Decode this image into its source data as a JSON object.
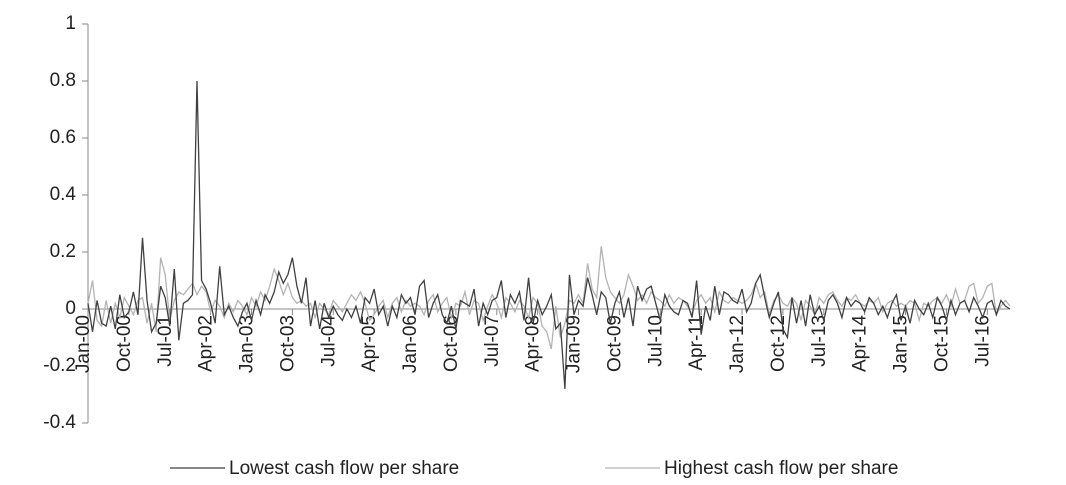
{
  "chart_data": {
    "type": "line",
    "categories": [
      "Jan-00",
      null,
      null,
      null,
      null,
      null,
      null,
      null,
      null,
      "Oct-00",
      null,
      null,
      null,
      null,
      null,
      null,
      null,
      null,
      "Jul-01",
      null,
      null,
      null,
      null,
      null,
      null,
      null,
      null,
      "Apr-02",
      null,
      null,
      null,
      null,
      null,
      null,
      null,
      null,
      "Jan-03",
      null,
      null,
      null,
      null,
      null,
      null,
      null,
      null,
      "Oct-03",
      null,
      null,
      null,
      null,
      null,
      null,
      null,
      null,
      "Jul-04",
      null,
      null,
      null,
      null,
      null,
      null,
      null,
      null,
      "Apr-05",
      null,
      null,
      null,
      null,
      null,
      null,
      null,
      null,
      "Jan-06",
      null,
      null,
      null,
      null,
      null,
      null,
      null,
      null,
      "Oct-06",
      null,
      null,
      null,
      null,
      null,
      null,
      null,
      null,
      "Jul-07",
      null,
      null,
      null,
      null,
      null,
      null,
      null,
      null,
      "Apr-08",
      null,
      null,
      null,
      null,
      null,
      null,
      null,
      null,
      "Jan-09",
      null,
      null,
      null,
      null,
      null,
      null,
      null,
      null,
      "Oct-09",
      null,
      null,
      null,
      null,
      null,
      null,
      null,
      null,
      "Jul-10",
      null,
      null,
      null,
      null,
      null,
      null,
      null,
      null,
      "Apr-11",
      null,
      null,
      null,
      null,
      null,
      null,
      null,
      null,
      "Jan-12",
      null,
      null,
      null,
      null,
      null,
      null,
      null,
      null,
      "Oct-12",
      null,
      null,
      null,
      null,
      null,
      null,
      null,
      null,
      "Jul-13",
      null,
      null,
      null,
      null,
      null,
      null,
      null,
      null,
      "Apr-14",
      null,
      null,
      null,
      null,
      null,
      null,
      null,
      null,
      "Jan-15",
      null,
      null,
      null,
      null,
      null,
      null,
      null,
      null,
      "Oct-15",
      null,
      null,
      null,
      null,
      null,
      null,
      null,
      null,
      "Jul-16",
      null,
      null,
      null,
      null,
      null
    ],
    "series": [
      {
        "name": "Lowest cash flow per share",
        "color": "#404040",
        "values": [
          0.02,
          -0.08,
          0.03,
          -0.05,
          -0.06,
          0.01,
          -0.07,
          0.05,
          -0.03,
          -0.01,
          0.06,
          -0.02,
          0.25,
          0.03,
          -0.08,
          -0.05,
          0.08,
          0.04,
          -0.06,
          0.14,
          -0.11,
          0.02,
          0.03,
          0.05,
          0.8,
          0.1,
          0.07,
          0.02,
          -0.05,
          0.15,
          -0.02,
          0.01,
          -0.03,
          -0.06,
          -0.01,
          0.02,
          -0.04,
          0.03,
          -0.02,
          0.05,
          0.02,
          0.06,
          0.13,
          0.09,
          0.12,
          0.18,
          0.08,
          0.02,
          0.11,
          -0.06,
          0.03,
          -0.07,
          0.02,
          -0.03,
          0.01,
          -0.02,
          -0.04,
          0.0,
          -0.03,
          0.01,
          -0.05,
          0.04,
          0.02,
          0.07,
          -0.02,
          0.01,
          -0.06,
          0.01,
          -0.03,
          0.05,
          0.02,
          0.04,
          -0.02,
          0.08,
          0.1,
          -0.03,
          0.02,
          0.05,
          -0.02,
          -0.05,
          0.01,
          -0.07,
          0.03,
          0.02,
          0.01,
          0.07,
          -0.06,
          0.02,
          -0.02,
          0.03,
          0.04,
          0.1,
          -0.03,
          0.05,
          0.02,
          0.06,
          -0.04,
          0.11,
          -0.05,
          0.03,
          -0.02,
          0.01,
          0.05,
          -0.07,
          -0.05,
          -0.28,
          0.12,
          -0.02,
          0.03,
          0.01,
          0.11,
          0.05,
          -0.02,
          0.06,
          0.04,
          -0.05,
          0.02,
          0.06,
          -0.03,
          0.04,
          -0.06,
          0.08,
          0.03,
          0.07,
          0.08,
          0.02,
          -0.04,
          0.05,
          0.01,
          -0.01,
          -0.02,
          0.03,
          0.02,
          -0.03,
          0.1,
          -0.09,
          0.01,
          -0.04,
          0.08,
          -0.02,
          0.06,
          0.05,
          0.03,
          0.02,
          0.07,
          -0.01,
          0.02,
          0.09,
          0.12,
          0.04,
          -0.03,
          0.02,
          0.06,
          -0.07,
          -0.1,
          0.04,
          -0.05,
          0.03,
          -0.06,
          0.05,
          -0.02,
          0.01,
          -0.04,
          0.03,
          0.05,
          0.02,
          -0.03,
          0.04,
          0.01,
          0.03,
          0.02,
          -0.01,
          0.04,
          0.02,
          -0.02,
          0.01,
          -0.03,
          0.02,
          0.05,
          -0.04,
          0.01,
          -0.05,
          0.03,
          0.0,
          -0.02,
          0.02,
          -0.03,
          0.04,
          0.01,
          -0.04,
          0.03,
          -0.02,
          0.02,
          0.03,
          -0.01,
          0.04,
          0.01,
          -0.03,
          0.02,
          0.03,
          -0.02,
          0.03,
          0.01,
          0.0
        ]
      },
      {
        "name": "Highest cash flow per share",
        "color": "#b3b3b3",
        "values": [
          0.02,
          0.1,
          -0.04,
          -0.06,
          0.03,
          -0.05,
          0.02,
          -0.03,
          0.04,
          0.01,
          -0.02,
          0.03,
          0.04,
          -0.05,
          0.02,
          -0.08,
          0.18,
          0.12,
          -0.04,
          0.03,
          0.06,
          0.05,
          0.07,
          0.09,
          0.05,
          0.08,
          0.06,
          -0.01,
          0.03,
          0.01,
          -0.03,
          0.02,
          -0.01,
          0.03,
          0.01,
          -0.02,
          0.04,
          0.01,
          0.06,
          0.03,
          0.08,
          0.14,
          0.1,
          0.05,
          0.09,
          0.04,
          0.02,
          0.03,
          0.01,
          0.02,
          -0.03,
          0.02,
          0.0,
          -0.02,
          0.03,
          0.01,
          -0.01,
          0.02,
          0.05,
          0.03,
          0.06,
          0.02,
          -0.04,
          -0.02,
          0.01,
          0.03,
          -0.03,
          0.02,
          0.04,
          -0.01,
          0.03,
          0.01,
          0.02,
          0.01,
          -0.02,
          0.03,
          0.05,
          -0.01,
          0.02,
          0.04,
          -0.03,
          0.02,
          0.01,
          0.06,
          -0.02,
          0.03,
          0.02,
          -0.04,
          0.01,
          0.05,
          0.02,
          -0.03,
          0.04,
          0.02,
          -0.01,
          0.03,
          0.01,
          -0.03,
          0.04,
          0.02,
          -0.06,
          -0.08,
          -0.14,
          0.01,
          -0.1,
          -0.05,
          0.03,
          0.02,
          0.05,
          0.02,
          0.16,
          0.07,
          0.04,
          0.22,
          0.11,
          0.06,
          0.04,
          0.02,
          0.05,
          0.12,
          0.08,
          0.03,
          0.05,
          0.02,
          0.06,
          0.04,
          0.03,
          0.01,
          0.05,
          0.02,
          0.04,
          0.03,
          0.01,
          -0.02,
          0.03,
          0.05,
          0.02,
          0.04,
          -0.01,
          0.06,
          0.03,
          0.02,
          0.04,
          0.03,
          0.02,
          0.03,
          0.05,
          0.09,
          0.04,
          0.06,
          -0.02,
          0.03,
          0.05,
          0.02,
          0.01,
          0.04,
          0.02,
          -0.04,
          0.03,
          0.01,
          -0.02,
          0.04,
          0.02,
          0.05,
          0.06,
          0.03,
          0.01,
          0.04,
          0.03,
          0.05,
          0.02,
          0.01,
          0.03,
          0.02,
          0.04,
          -0.01,
          0.02,
          0.03,
          0.01,
          0.02,
          0.01,
          0.03,
          0.02,
          -0.04,
          0.02,
          0.01,
          0.03,
          0.04,
          0.02,
          0.05,
          0.01,
          0.07,
          0.02,
          0.03,
          0.08,
          0.09,
          0.02,
          0.04,
          0.08,
          0.09,
          -0.02,
          0.01,
          0.03,
          0.01
        ]
      }
    ],
    "ylim": [
      -0.4,
      1
    ],
    "yticks": [
      -0.4,
      -0.2,
      0,
      0.2,
      0.4,
      0.6,
      0.8,
      1
    ],
    "grid": false
  }
}
